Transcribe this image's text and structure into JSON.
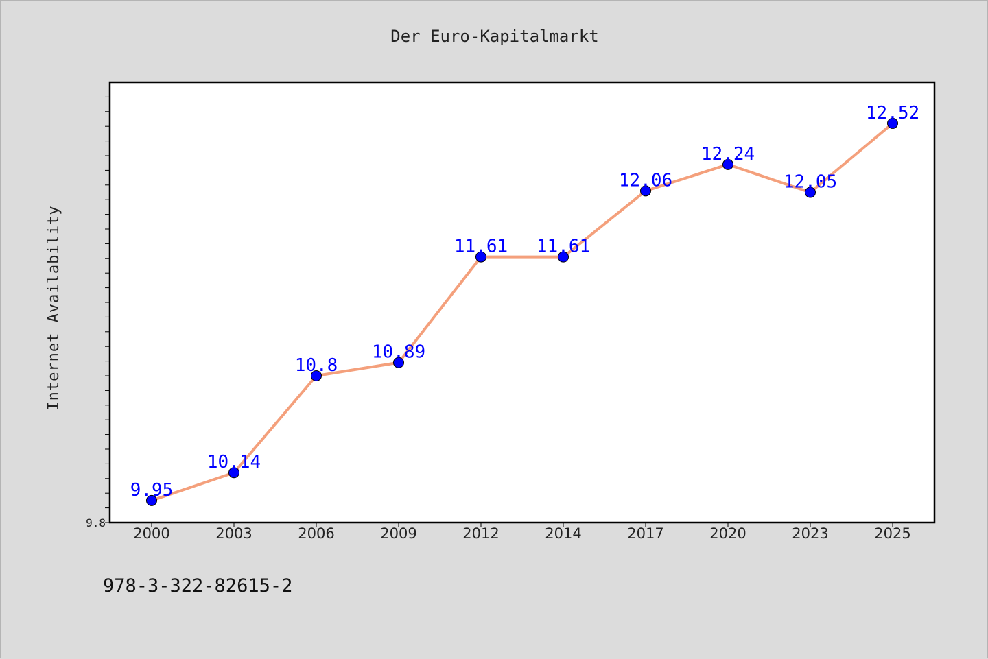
{
  "chart_data": {
    "type": "line",
    "title": "Der Euro-Kapitalmarkt",
    "xlabel": "",
    "ylabel": "Internet Availability",
    "categories": [
      "2000",
      "2003",
      "2006",
      "2009",
      "2012",
      "2014",
      "2017",
      "2020",
      "2023",
      "2025"
    ],
    "series": [
      {
        "values": [
          9.95,
          10.14,
          10.8,
          10.89,
          11.61,
          11.61,
          12.06,
          12.24,
          12.05,
          12.52
        ],
        "data_labels": [
          "9.95",
          "10.14",
          "10.8",
          "10.89",
          "11.61",
          "11.61",
          "12.06",
          "12.24",
          "12.05",
          "12.52"
        ],
        "line_color": "#f4a07c",
        "marker_color": "#0000ff"
      }
    ],
    "ylim": [
      9.8,
      12.8
    ],
    "yticks_labeled": [
      "9.8"
    ],
    "y_minor_step": 0.1,
    "grid": false,
    "legend": "none",
    "background": "#dcdcdc",
    "plot_background": "#ffffff"
  },
  "footer": {
    "isbn": "978-3-322-82615-2"
  }
}
